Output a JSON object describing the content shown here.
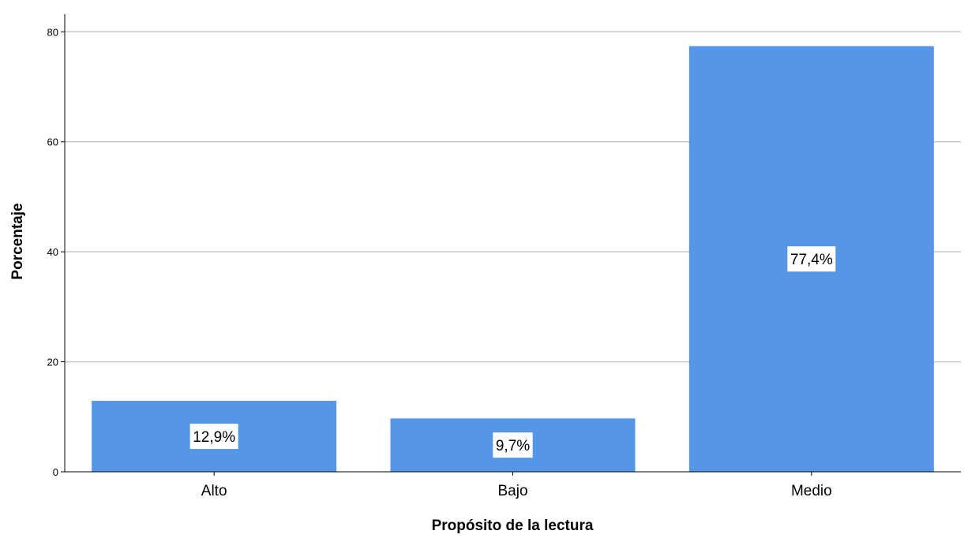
{
  "chart_data": {
    "type": "bar",
    "title": "",
    "xlabel": "Propósito de la lectura",
    "ylabel": "Porcentaje",
    "categories": [
      "Alto",
      "Bajo",
      "Medio"
    ],
    "values": [
      12.9,
      9.7,
      77.4
    ],
    "data_labels": [
      "12,9%",
      "9,7%",
      "77,4%"
    ],
    "ylim": [
      0,
      80
    ],
    "yticks": [
      0,
      20,
      40,
      60,
      80
    ],
    "ytick_labels": [
      "0",
      "20",
      "40",
      "60",
      "80"
    ],
    "grid": true,
    "legend": "none",
    "bar_color": "#5596e6",
    "grid_color": "#c8c8c8",
    "axis_color": "#000000"
  }
}
